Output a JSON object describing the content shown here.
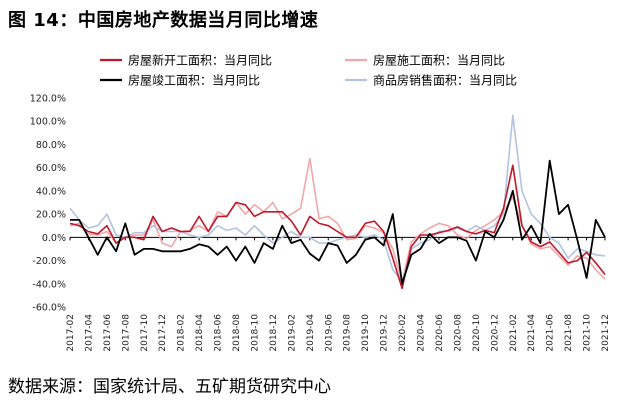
{
  "figure_title": "图 14：中国房地产数据当月同比增速",
  "source_note": "数据来源：国家统计局、五矿期货研究中心",
  "chart_data": {
    "type": "line",
    "title": "",
    "xlabel": "",
    "ylabel": "",
    "ylim": [
      -60,
      120
    ],
    "yticks": [
      -60,
      -40,
      -20,
      0,
      20,
      40,
      60,
      80,
      100,
      120
    ],
    "ytick_labels": [
      "-60.0%",
      "-40.0%",
      "-20.0%",
      "0.0%",
      "20.0%",
      "40.0%",
      "60.0%",
      "80.0%",
      "100.0%",
      "120.0%"
    ],
    "grid": false,
    "legend_position": "top",
    "x_tick_labels": [
      "2017-02",
      "2017-04",
      "2017-06",
      "2017-08",
      "2017-10",
      "2017-12",
      "2018-02",
      "2018-04",
      "2018-06",
      "2018-08",
      "2018-10",
      "2018-12",
      "2019-02",
      "2019-04",
      "2019-06",
      "2019-08",
      "2019-10",
      "2019-12",
      "2020-02",
      "2020-04",
      "2020-06",
      "2020-08",
      "2020-10",
      "2020-12",
      "2021-02",
      "2021-04",
      "2021-06",
      "2021-08",
      "2021-10",
      "2021-12"
    ],
    "x": [
      "2017-02",
      "2017-03",
      "2017-04",
      "2017-05",
      "2017-06",
      "2017-07",
      "2017-08",
      "2017-09",
      "2017-10",
      "2017-11",
      "2017-12",
      "2018-01",
      "2018-02",
      "2018-03",
      "2018-04",
      "2018-05",
      "2018-06",
      "2018-07",
      "2018-08",
      "2018-09",
      "2018-10",
      "2018-11",
      "2018-12",
      "2019-01",
      "2019-02",
      "2019-03",
      "2019-04",
      "2019-05",
      "2019-06",
      "2019-07",
      "2019-08",
      "2019-09",
      "2019-10",
      "2019-11",
      "2019-12",
      "2020-01",
      "2020-02",
      "2020-03",
      "2020-04",
      "2020-05",
      "2020-06",
      "2020-07",
      "2020-08",
      "2020-09",
      "2020-10",
      "2020-11",
      "2020-12",
      "2021-01",
      "2021-02",
      "2021-03",
      "2021-04",
      "2021-05",
      "2021-06",
      "2021-07",
      "2021-08",
      "2021-09",
      "2021-10",
      "2021-11",
      "2021-12"
    ],
    "series": [
      {
        "name": "房屋新开工面积：当月同比",
        "color": "#c0182a",
        "width": 1.6,
        "values": [
          12,
          10,
          5,
          3,
          10,
          -5,
          0,
          0,
          -2,
          18,
          5,
          8,
          5,
          5,
          18,
          5,
          18,
          18,
          30,
          28,
          18,
          22,
          22,
          22,
          14,
          2,
          18,
          12,
          10,
          5,
          0,
          0,
          12,
          14,
          5,
          -18,
          -44,
          -8,
          2,
          2,
          4,
          6,
          9,
          5,
          3,
          6,
          4,
          25,
          62,
          10,
          -4,
          -8,
          -4,
          -13,
          -22,
          -20,
          -13,
          -22,
          -32
        ]
      },
      {
        "name": "房屋施工面积：当月同比",
        "color": "#f4a6a9",
        "width": 1.6,
        "values": [
          10,
          12,
          3,
          2,
          5,
          -5,
          0,
          2,
          2,
          15,
          -5,
          -8,
          5,
          6,
          10,
          5,
          22,
          18,
          30,
          20,
          28,
          22,
          30,
          16,
          20,
          25,
          68,
          16,
          18,
          12,
          -2,
          -1,
          10,
          8,
          4,
          -10,
          -38,
          -4,
          3,
          8,
          12,
          10,
          2,
          -1,
          6,
          10,
          15,
          22,
          35,
          10,
          -6,
          -10,
          -8,
          -16,
          -24,
          -16,
          -18,
          -28,
          -36
        ]
      },
      {
        "name": "房屋竣工面积：当月同比",
        "color": "#000000",
        "width": 1.8,
        "values": [
          15,
          15,
          0,
          -15,
          0,
          -12,
          12,
          -15,
          -10,
          -10,
          -12,
          -12,
          -12,
          -10,
          -6,
          -8,
          -15,
          -8,
          -20,
          -8,
          -22,
          -5,
          -10,
          10,
          -5,
          -2,
          -14,
          -20,
          -5,
          -7,
          -22,
          -15,
          -2,
          0,
          -7,
          20,
          -40,
          -15,
          -10,
          3,
          -5,
          0,
          0,
          -3,
          -20,
          5,
          0,
          15,
          40,
          -2,
          10,
          -5,
          66,
          20,
          28,
          -2,
          -35,
          15,
          0
        ]
      },
      {
        "name": "商品房销售面积：当月同比",
        "color": "#b3c3e1",
        "width": 1.6,
        "values": [
          25,
          15,
          8,
          10,
          20,
          2,
          0,
          4,
          4,
          10,
          5,
          5,
          5,
          2,
          0,
          2,
          10,
          6,
          8,
          2,
          10,
          2,
          -5,
          0,
          5,
          0,
          0,
          -5,
          -5,
          -2,
          0,
          2,
          0,
          2,
          -2,
          -28,
          -38,
          -10,
          -5,
          -2,
          5,
          5,
          8,
          5,
          10,
          6,
          10,
          20,
          105,
          40,
          20,
          12,
          0,
          -5,
          -18,
          -10,
          -12,
          -15,
          -16
        ]
      }
    ]
  }
}
